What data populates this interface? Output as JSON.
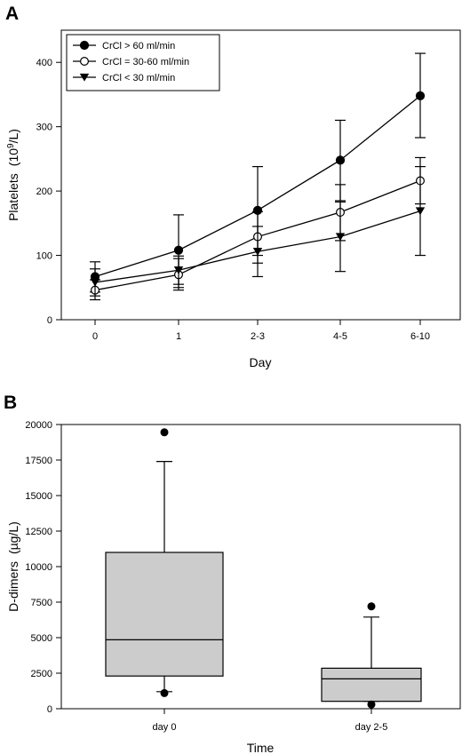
{
  "chart_data": [
    {
      "panel": "A",
      "type": "line",
      "xlabel": "Day",
      "ylabel_main": "Platelets",
      "ylabel_unit_pre": "(10",
      "ylabel_unit_sup": "9",
      "ylabel_unit_post": "/L)",
      "categories": [
        "0",
        "1",
        "2-3",
        "4-5",
        "6-10"
      ],
      "ylim": [
        0,
        450
      ],
      "yticks": [
        0,
        100,
        200,
        300,
        400
      ],
      "legend_position": "top-left",
      "series": [
        {
          "name": "CrCl > 60 ml/min",
          "marker": "filled-circle",
          "values": [
            67,
            108,
            170,
            248,
            348
          ],
          "err_low": [
            43,
            50,
            100,
            185,
            283
          ],
          "err_high": [
            90,
            163,
            238,
            310,
            414
          ]
        },
        {
          "name": "CrCl = 30-60 ml/min",
          "marker": "open-circle",
          "values": [
            46,
            70,
            129,
            167,
            216
          ],
          "err_low": [
            31,
            46,
            88,
            123,
            180
          ],
          "err_high": [
            62,
            95,
            168,
            210,
            252
          ]
        },
        {
          "name": "CrCl < 30 ml/min",
          "marker": "filled-triangle-down",
          "values": [
            58,
            77,
            106,
            129,
            169
          ],
          "err_low": [
            37,
            55,
            67,
            75,
            100
          ],
          "err_high": [
            79,
            99,
            145,
            183,
            238
          ]
        }
      ]
    },
    {
      "panel": "B",
      "type": "box",
      "xlabel": "Time",
      "ylabel_main": "D-dimers",
      "ylabel_unit": "(µg/L)",
      "ylim": [
        0,
        20000
      ],
      "yticks": [
        0,
        2500,
        5000,
        7500,
        10000,
        12500,
        15000,
        17500,
        20000
      ],
      "boxes": [
        {
          "label": "day 0",
          "whisker_low": 1200,
          "q1": 2300,
          "median": 4850,
          "q3": 11000,
          "whisker_high": 17400,
          "outliers": [
            19450,
            1100
          ]
        },
        {
          "label": "day 2-5",
          "whisker_low": 520,
          "q1": 520,
          "median": 2100,
          "q3": 2850,
          "whisker_high": 6450,
          "outliers": [
            7200,
            300
          ]
        }
      ]
    }
  ]
}
